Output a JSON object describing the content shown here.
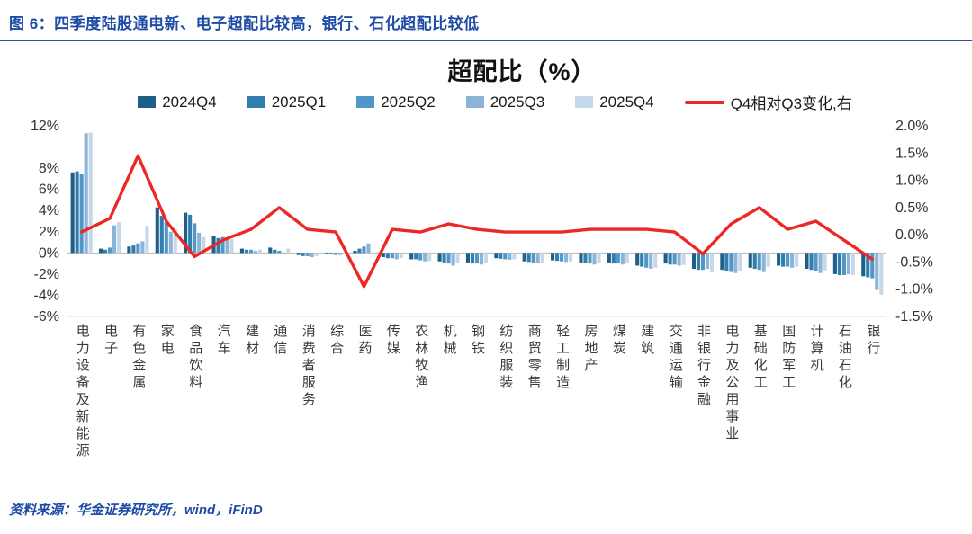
{
  "header": {
    "title": "图 6：四季度陆股通电新、电子超配比较高，银行、石化超配比较低"
  },
  "footer": {
    "source": "资料来源：华金证券研究所，wind，iFinD"
  },
  "colors": {
    "accent_blue": "#1d4ba6",
    "line_red": "#ed2724"
  },
  "chart_data": {
    "type": "bar+line",
    "title": "超配比（%）",
    "legend_position": "top",
    "grid": false,
    "categories": [
      "电力设备及新能源",
      "电子",
      "有色金属",
      "家电",
      "食品饮料",
      "汽车",
      "建材",
      "通信",
      "消费者服务",
      "综合",
      "医药",
      "传媒",
      "农林牧渔",
      "机械",
      "钢铁",
      "纺织服装",
      "商贸零售",
      "轻工制造",
      "房地产",
      "煤炭",
      "建筑",
      "交通运输",
      "非银行金融",
      "电力及公用事业",
      "基础化工",
      "国防军工",
      "计算机",
      "石油石化",
      "银行"
    ],
    "series": [
      {
        "name": "2024Q4",
        "color": "#1f5f87",
        "values": [
          7.6,
          0.4,
          0.6,
          4.3,
          3.8,
          1.6,
          0.4,
          0.5,
          -0.2,
          -0.1,
          0.2,
          -0.4,
          -0.6,
          -0.8,
          -0.9,
          -0.5,
          -0.8,
          -0.7,
          -0.9,
          -0.9,
          -1.2,
          -1.0,
          -1.5,
          -1.6,
          -1.4,
          -1.2,
          -1.5,
          -2.0,
          -2.2
        ]
      },
      {
        "name": "2025Q1",
        "color": "#2f7eae",
        "values": [
          7.7,
          0.3,
          0.7,
          3.5,
          3.6,
          1.4,
          0.3,
          0.3,
          -0.3,
          -0.1,
          0.4,
          -0.5,
          -0.6,
          -0.9,
          -1.0,
          -0.55,
          -0.85,
          -0.75,
          -0.95,
          -1.0,
          -1.3,
          -1.1,
          -1.6,
          -1.7,
          -1.5,
          -1.3,
          -1.6,
          -2.1,
          -2.3
        ]
      },
      {
        "name": "2025Q2",
        "color": "#5296c5",
        "values": [
          7.5,
          0.5,
          0.9,
          2.9,
          2.8,
          1.5,
          0.3,
          0.2,
          -0.3,
          -0.2,
          0.6,
          -0.5,
          -0.7,
          -1.0,
          -1.0,
          -0.6,
          -0.9,
          -0.8,
          -1.0,
          -1.0,
          -1.4,
          -1.1,
          -1.6,
          -1.8,
          -1.6,
          -1.3,
          -1.7,
          -2.1,
          -2.4
        ]
      },
      {
        "name": "2025Q3",
        "color": "#8ab4d8",
        "values": [
          11.3,
          2.6,
          1.1,
          2.0,
          1.9,
          1.4,
          0.2,
          -0.1,
          -0.4,
          -0.2,
          0.9,
          -0.6,
          -0.8,
          -1.2,
          -1.1,
          -0.65,
          -0.95,
          -0.85,
          -1.1,
          -1.1,
          -1.5,
          -1.2,
          -1.5,
          -1.9,
          -1.8,
          -1.4,
          -1.9,
          -2.0,
          -3.5
        ]
      },
      {
        "name": "2025Q4",
        "color": "#c4d8ea",
        "values": [
          11.35,
          2.9,
          2.55,
          2.25,
          1.5,
          1.3,
          0.3,
          0.4,
          -0.3,
          -0.15,
          -0.05,
          -0.5,
          -0.75,
          -1.0,
          -1.0,
          -0.6,
          -0.9,
          -0.8,
          -1.0,
          -1.0,
          -1.4,
          -1.15,
          -1.85,
          -1.7,
          -1.3,
          -1.3,
          -1.65,
          -2.1,
          -3.95
        ]
      }
    ],
    "line_series": {
      "name": "Q4相对Q3变化,右",
      "color": "#ed2724",
      "axis": "right",
      "values": [
        0.05,
        0.3,
        1.45,
        0.25,
        -0.4,
        -0.1,
        0.1,
        0.5,
        0.1,
        0.05,
        -0.95,
        0.1,
        0.05,
        0.2,
        0.1,
        0.05,
        0.05,
        0.05,
        0.1,
        0.1,
        0.1,
        0.05,
        -0.35,
        0.2,
        0.5,
        0.1,
        0.25,
        -0.1,
        -0.45
      ]
    },
    "left_axis": {
      "range": [
        -6,
        12
      ],
      "ticks": [
        12,
        8,
        6,
        4,
        2,
        0,
        -2,
        -4,
        -6
      ],
      "labels": [
        "12%",
        "8%",
        "6%",
        "4%",
        "2%",
        "0%",
        "-2%",
        "-4%",
        "-6%"
      ]
    },
    "right_axis": {
      "range": [
        -1.5,
        2.0
      ],
      "ticks": [
        2.0,
        1.5,
        1.0,
        0.5,
        0.0,
        -0.5,
        -1.0,
        -1.5
      ],
      "labels": [
        "2.0%",
        "1.5%",
        "1.0%",
        "0.5%",
        "0.0%",
        "-0.5%",
        "-1.0%",
        "-1.5%"
      ]
    }
  }
}
